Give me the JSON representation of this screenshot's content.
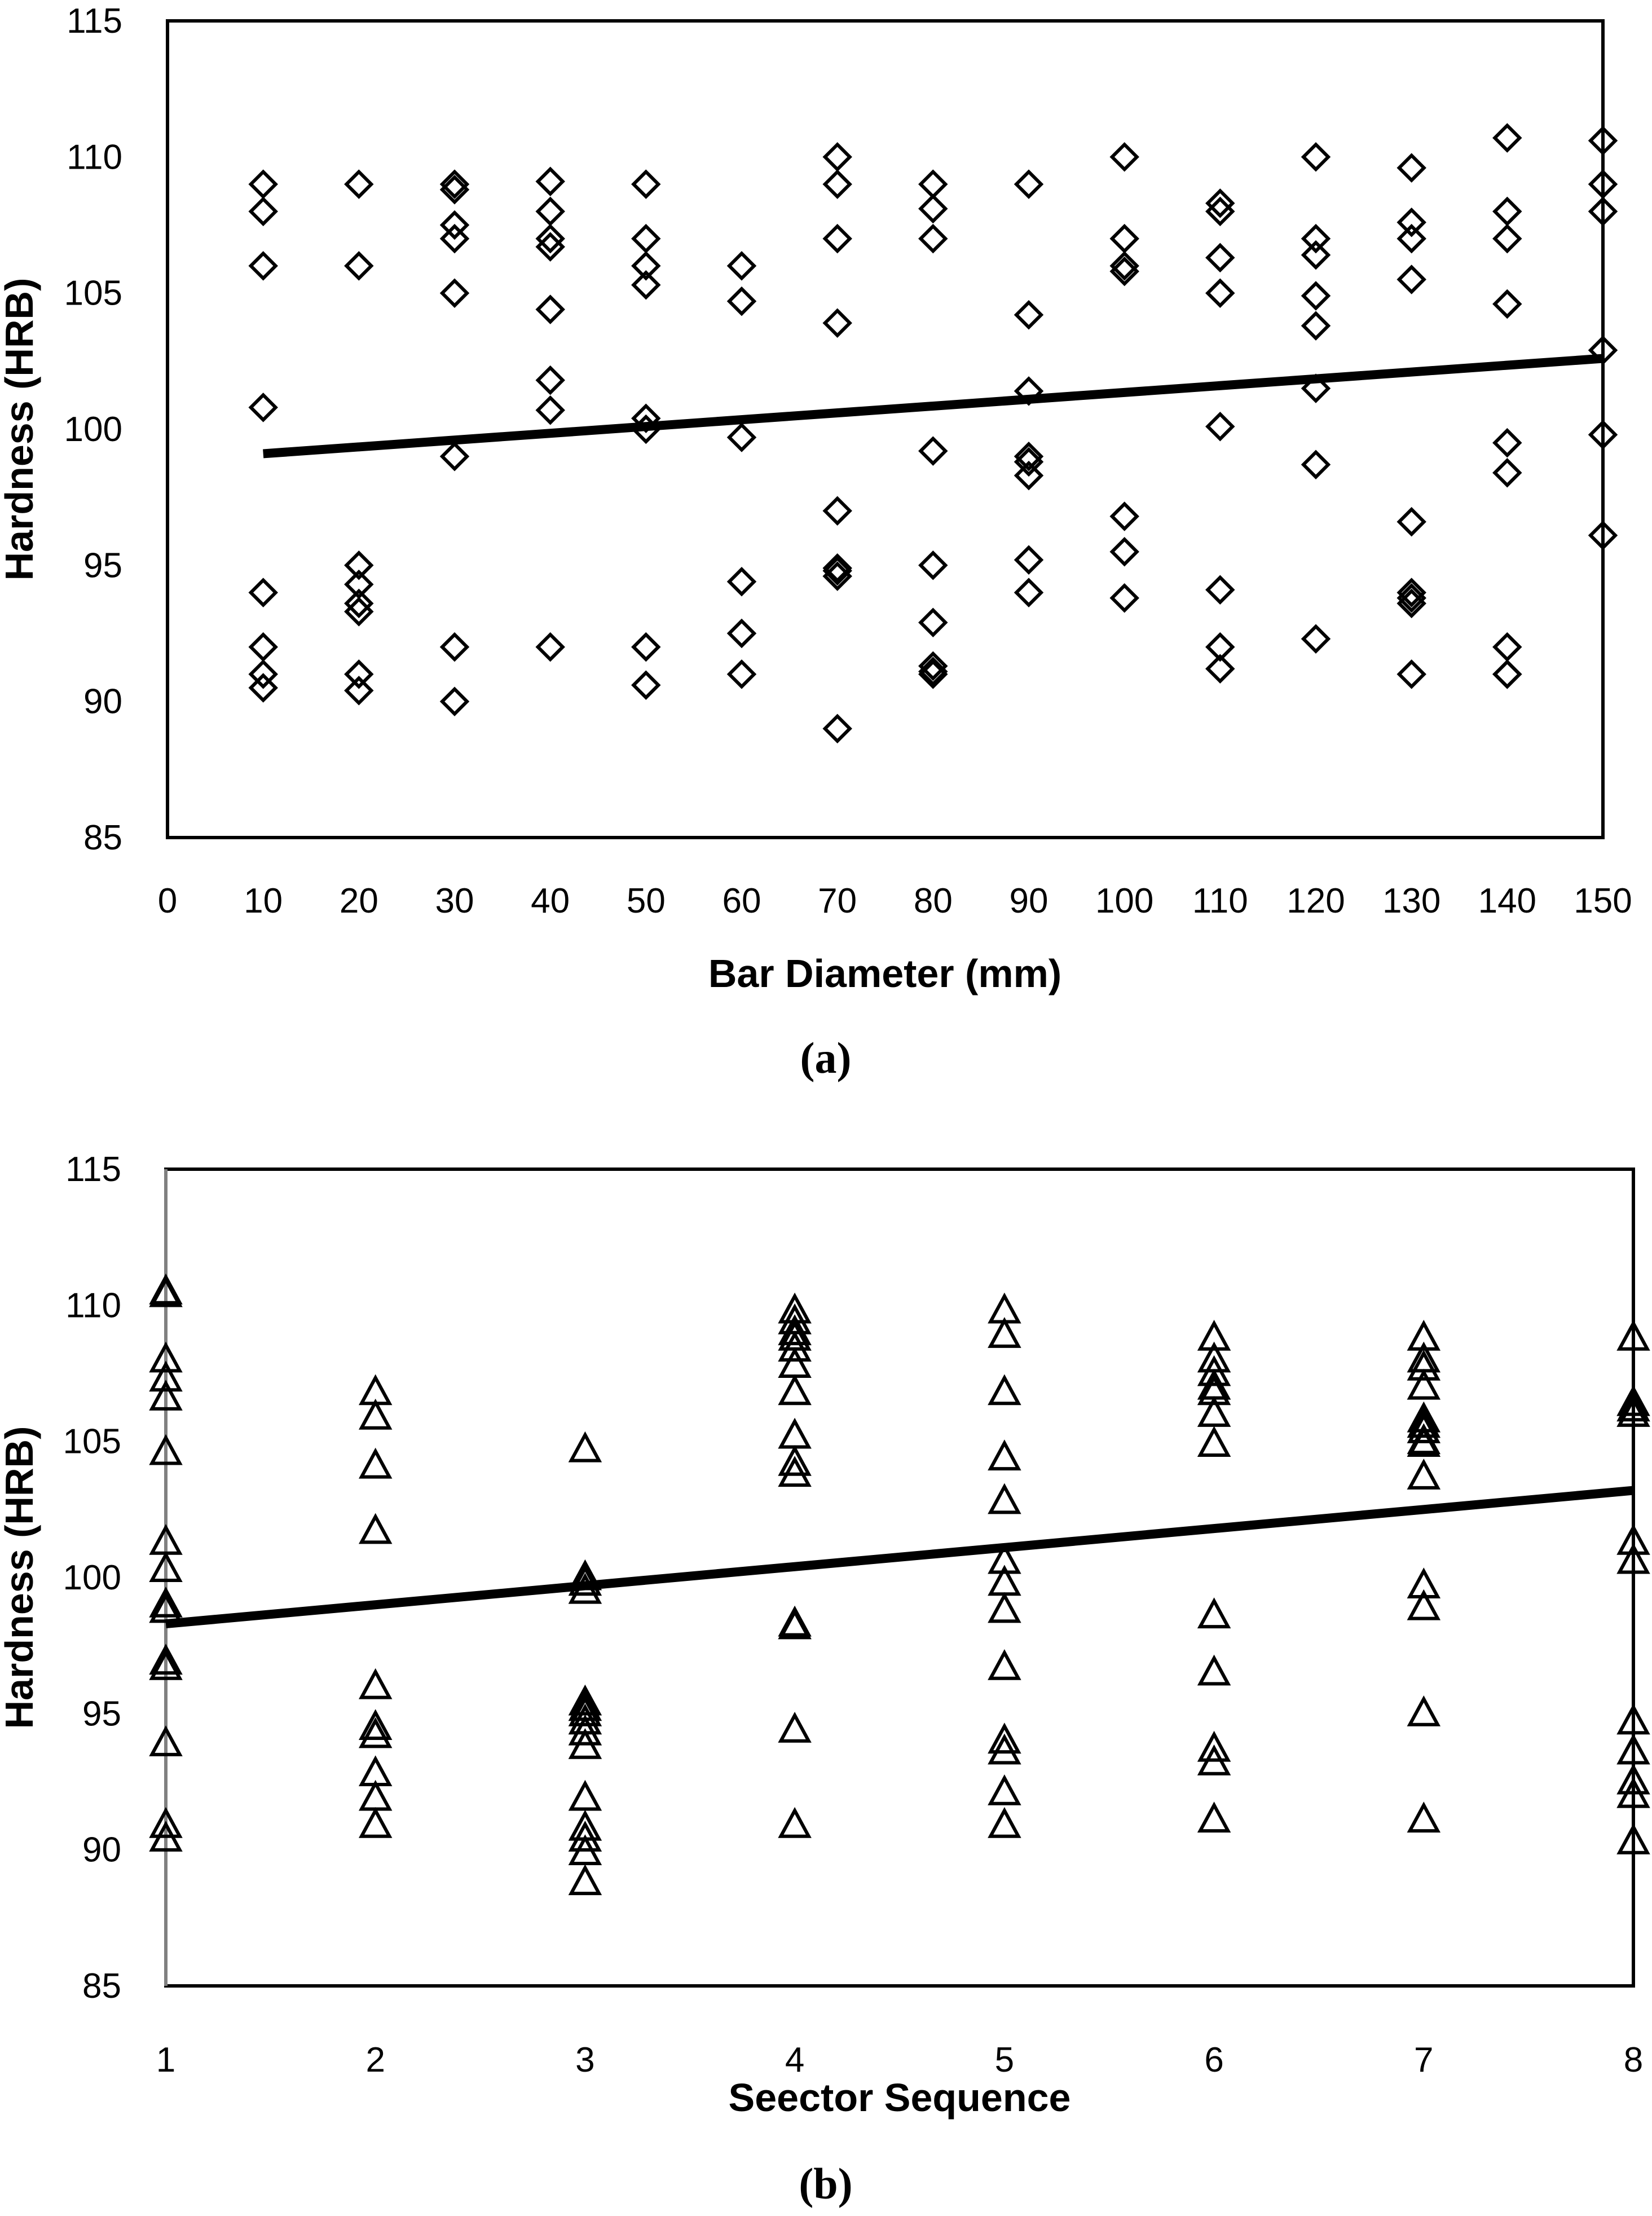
{
  "chart_data": [
    {
      "type": "scatter",
      "panel_label": "(a)",
      "xlabel": "Bar Diameter (mm)",
      "ylabel": "Hardness (HRB)",
      "xlim": [
        0,
        150
      ],
      "ylim": [
        85,
        115
      ],
      "xticks": [
        "0",
        "10",
        "20",
        "30",
        "40",
        "50",
        "60",
        "70",
        "80",
        "90",
        "100",
        "110",
        "120",
        "130",
        "140",
        "150"
      ],
      "yticks": [
        "85",
        "90",
        "95",
        "100",
        "105",
        "110",
        "115"
      ],
      "grid": false,
      "marker": "diamond",
      "series": [
        {
          "name": "Hardness",
          "x": [
            10,
            10,
            10,
            10,
            10,
            10,
            10,
            10,
            20,
            20,
            20,
            20,
            20,
            20,
            20,
            20,
            30,
            30,
            30,
            30,
            30,
            30,
            30,
            30,
            40,
            40,
            40,
            40,
            40,
            40,
            40,
            40,
            50,
            50,
            50,
            50,
            50,
            50,
            50,
            50,
            60,
            60,
            60,
            60,
            60,
            60,
            70,
            70,
            70,
            70,
            70,
            70,
            70,
            70,
            70,
            80,
            80,
            80,
            80,
            80,
            80,
            80,
            80,
            80,
            90,
            90,
            90,
            90,
            90,
            90,
            90,
            90,
            100,
            100,
            100,
            100,
            100,
            100,
            100,
            110,
            110,
            110,
            110,
            110,
            110,
            110,
            110,
            120,
            120,
            120,
            120,
            120,
            120,
            120,
            120,
            130,
            130,
            130,
            130,
            130,
            130,
            130,
            130,
            130,
            140,
            140,
            140,
            140,
            140,
            140,
            140,
            140,
            140,
            150,
            150,
            150,
            150,
            150,
            150
          ],
          "y": [
            109.0,
            108.0,
            106.0,
            100.8,
            94.0,
            92.0,
            91.0,
            90.5,
            109.0,
            106.0,
            95.0,
            94.3,
            93.6,
            93.3,
            91.0,
            90.4,
            109.0,
            108.8,
            107.5,
            107.0,
            105.0,
            99.0,
            92.0,
            90.0,
            109.1,
            108.0,
            107.0,
            106.7,
            104.4,
            101.8,
            100.7,
            92.0,
            109.0,
            107.0,
            106.0,
            105.3,
            100.4,
            100.0,
            92.0,
            90.6,
            106.0,
            104.7,
            99.7,
            94.4,
            92.5,
            91.0,
            110.0,
            109.0,
            107.0,
            103.9,
            97.0,
            94.9,
            94.6,
            94.8,
            89.0,
            109.0,
            108.1,
            107.0,
            99.2,
            95.0,
            92.9,
            91.3,
            91.0,
            91.1,
            109.0,
            104.2,
            101.4,
            99.0,
            98.8,
            98.3,
            95.2,
            94.0,
            110.0,
            107.0,
            106.0,
            105.8,
            96.8,
            95.5,
            93.8,
            108.3,
            108.0,
            106.3,
            105.0,
            100.1,
            94.1,
            92.0,
            91.2,
            110.0,
            107.0,
            106.4,
            104.9,
            103.8,
            101.5,
            98.7,
            92.3,
            109.6,
            107.6,
            107.0,
            105.5,
            96.6,
            94.0,
            93.8,
            93.6,
            91.0,
            110.7,
            108.0,
            107.0,
            104.6,
            99.5,
            98.4,
            92.0,
            91.0,
            91.0,
            110.6,
            109.0,
            108.0,
            102.9,
            99.8,
            96.1
          ]
        }
      ],
      "trendline": {
        "x": [
          10,
          150
        ],
        "y": [
          99.1,
          102.6
        ]
      }
    },
    {
      "type": "scatter",
      "panel_label": "(b)",
      "xlabel": "Seector Sequence",
      "ylabel": "Hardness (HRB)",
      "xlim": [
        1,
        8
      ],
      "ylim": [
        85,
        115
      ],
      "xticks": [
        "1",
        "2",
        "3",
        "4",
        "5",
        "6",
        "7",
        "8"
      ],
      "yticks": [
        "85",
        "90",
        "95",
        "100",
        "105",
        "110",
        "115"
      ],
      "grid": false,
      "marker": "triangle",
      "series": [
        {
          "name": "Hardness",
          "x": [
            1,
            1,
            1,
            1,
            1,
            1,
            1,
            1,
            1,
            1,
            1,
            1,
            1,
            1,
            1,
            2,
            2,
            2,
            2,
            2,
            2,
            2,
            2,
            2,
            2,
            3,
            3,
            3,
            3,
            3,
            3,
            3,
            3,
            3,
            3,
            3,
            3,
            3,
            3,
            3,
            4,
            4,
            4,
            4,
            4,
            4,
            4,
            4,
            4,
            4,
            4,
            4,
            4,
            4,
            5,
            5,
            5,
            5,
            5,
            5,
            5,
            5,
            5,
            5,
            5,
            5,
            5,
            6,
            6,
            6,
            6,
            6,
            6,
            6,
            6,
            6,
            6,
            6,
            6,
            7,
            7,
            7,
            7,
            7,
            7,
            7,
            7,
            7,
            7,
            7,
            7,
            7,
            7,
            8,
            8,
            8,
            8,
            8,
            8,
            8,
            8,
            8,
            8,
            8
          ],
          "y": [
            110.4,
            108.0,
            107.3,
            106.6,
            104.6,
            101.3,
            100.3,
            99.0,
            98.8,
            96.9,
            96.7,
            93.9,
            90.9,
            90.4,
            110.5,
            106.8,
            105.9,
            104.1,
            101.7,
            96.0,
            94.5,
            94.2,
            92.8,
            91.9,
            90.9,
            104.7,
            100.0,
            99.8,
            99.5,
            95.4,
            95.0,
            94.7,
            94.3,
            93.8,
            91.9,
            90.8,
            90.4,
            89.9,
            88.8,
            95.2,
            109.8,
            109.4,
            109.0,
            108.8,
            108.4,
            107.8,
            106.8,
            105.2,
            104.2,
            103.8,
            98.3,
            98.2,
            94.4,
            90.9,
            109.8,
            108.9,
            106.8,
            104.4,
            102.8,
            100.6,
            99.8,
            98.8,
            96.7,
            94.0,
            93.6,
            92.1,
            90.9,
            108.8,
            108.0,
            107.5,
            107.0,
            106.8,
            106.0,
            104.9,
            98.6,
            96.5,
            93.7,
            93.2,
            91.1,
            108.8,
            108.0,
            107.7,
            107.0,
            105.8,
            105.4,
            105.0,
            104.9,
            103.7,
            99.7,
            98.9,
            95.0,
            91.1,
            105.6,
            108.8,
            106.2,
            106.0,
            101.3,
            100.6,
            94.7,
            93.6,
            92.5,
            92.0,
            90.3,
            106.4
          ]
        }
      ],
      "trendline": {
        "x": [
          1,
          8
        ],
        "y": [
          98.3,
          103.2
        ]
      }
    }
  ]
}
